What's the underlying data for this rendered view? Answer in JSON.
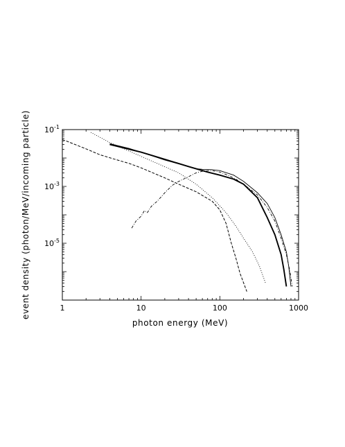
{
  "chart_data": {
    "type": "line",
    "xlabel": "photon energy (MeV)",
    "ylabel": "event density (photon/MeV/incoming particle)",
    "x_scale": "log",
    "y_scale": "log",
    "xlim": [
      1,
      1000
    ],
    "ylim": [
      1e-07,
      0.1
    ],
    "x_ticks": [
      {
        "value": 1,
        "label": "1"
      },
      {
        "value": 10,
        "label": "10"
      },
      {
        "value": 100,
        "label": "100"
      },
      {
        "value": 1000,
        "label": "1000"
      }
    ],
    "y_ticks": [
      {
        "value": 0.1,
        "label": "10-1",
        "base": "10",
        "exp": "-1"
      },
      {
        "value": 0.001,
        "label": "10-3",
        "base": "10",
        "exp": "-3"
      },
      {
        "value": 1e-05,
        "label": "10-5",
        "base": "10",
        "exp": "-5"
      }
    ],
    "grid": false,
    "series": [
      {
        "style": "thick-solid",
        "points": [
          [
            4,
            0.03
          ],
          [
            10,
            0.016
          ],
          [
            20,
            0.009
          ],
          [
            40,
            0.005
          ],
          [
            70,
            0.0032
          ],
          [
            100,
            0.0025
          ],
          [
            150,
            0.0018
          ],
          [
            200,
            0.0012
          ],
          [
            300,
            0.0004
          ],
          [
            400,
            8e-05
          ],
          [
            500,
            2e-05
          ],
          [
            600,
            4e-06
          ],
          [
            650,
            1.2e-06
          ],
          [
            700,
            3e-07
          ]
        ]
      },
      {
        "style": "thin-solid",
        "points": [
          [
            4,
            0.032
          ],
          [
            7,
            0.022
          ],
          [
            10,
            0.016
          ],
          [
            20,
            0.0085
          ],
          [
            35,
            0.0055
          ],
          [
            50,
            0.0042
          ],
          [
            60,
            0.004
          ],
          [
            80,
            0.0039
          ],
          [
            100,
            0.0036
          ],
          [
            150,
            0.0025
          ],
          [
            200,
            0.0015
          ],
          [
            300,
            0.0006
          ],
          [
            400,
            0.00025
          ],
          [
            500,
            8e-05
          ],
          [
            600,
            2e-05
          ],
          [
            700,
            5e-06
          ],
          [
            750,
            1.5e-06
          ],
          [
            800,
            3e-07
          ]
        ]
      },
      {
        "style": "dotted",
        "points": [
          [
            2.3,
            0.08
          ],
          [
            4,
            0.035
          ],
          [
            8,
            0.015
          ],
          [
            15,
            0.007
          ],
          [
            30,
            0.003
          ],
          [
            50,
            0.0012
          ],
          [
            80,
            0.0004
          ],
          [
            120,
            0.00012
          ],
          [
            160,
            4e-05
          ],
          [
            200,
            1.5e-05
          ],
          [
            260,
            5e-06
          ],
          [
            320,
            1.5e-06
          ],
          [
            380,
            4e-07
          ]
        ]
      },
      {
        "style": "dashed",
        "points": [
          [
            1,
            0.045
          ],
          [
            2,
            0.021
          ],
          [
            3,
            0.013
          ],
          [
            5,
            0.0085
          ],
          [
            7,
            0.0065
          ],
          [
            10,
            0.0045
          ],
          [
            20,
            0.002
          ],
          [
            30,
            0.0012
          ],
          [
            50,
            0.00065
          ],
          [
            80,
            0.0003
          ],
          [
            100,
            0.00015
          ],
          [
            120,
            5e-05
          ],
          [
            140,
            1e-05
          ],
          [
            160,
            3e-06
          ],
          [
            180,
            9e-07
          ],
          [
            220,
            2e-07
          ]
        ]
      },
      {
        "style": "dash-dot",
        "points": [
          [
            7.6,
            3.4e-05
          ],
          [
            8.6,
            6e-05
          ],
          [
            10,
            9e-05
          ],
          [
            11,
            0.00014
          ],
          [
            12,
            0.00012
          ],
          [
            13.5,
            0.0002
          ],
          [
            16,
            0.0003
          ],
          [
            20,
            0.0006
          ],
          [
            25,
            0.0011
          ],
          [
            30,
            0.0015
          ],
          [
            40,
            0.0022
          ],
          [
            50,
            0.003
          ],
          [
            60,
            0.0034
          ],
          [
            70,
            0.0036
          ],
          [
            80,
            0.0036
          ],
          [
            100,
            0.0032
          ],
          [
            130,
            0.0024
          ],
          [
            160,
            0.0018
          ],
          [
            200,
            0.0012
          ],
          [
            300,
            0.0005
          ],
          [
            400,
            0.00018
          ],
          [
            500,
            6e-05
          ],
          [
            600,
            1.5e-05
          ],
          [
            700,
            4e-06
          ],
          [
            780,
            1e-06
          ],
          [
            830,
            3e-07
          ]
        ]
      }
    ]
  }
}
